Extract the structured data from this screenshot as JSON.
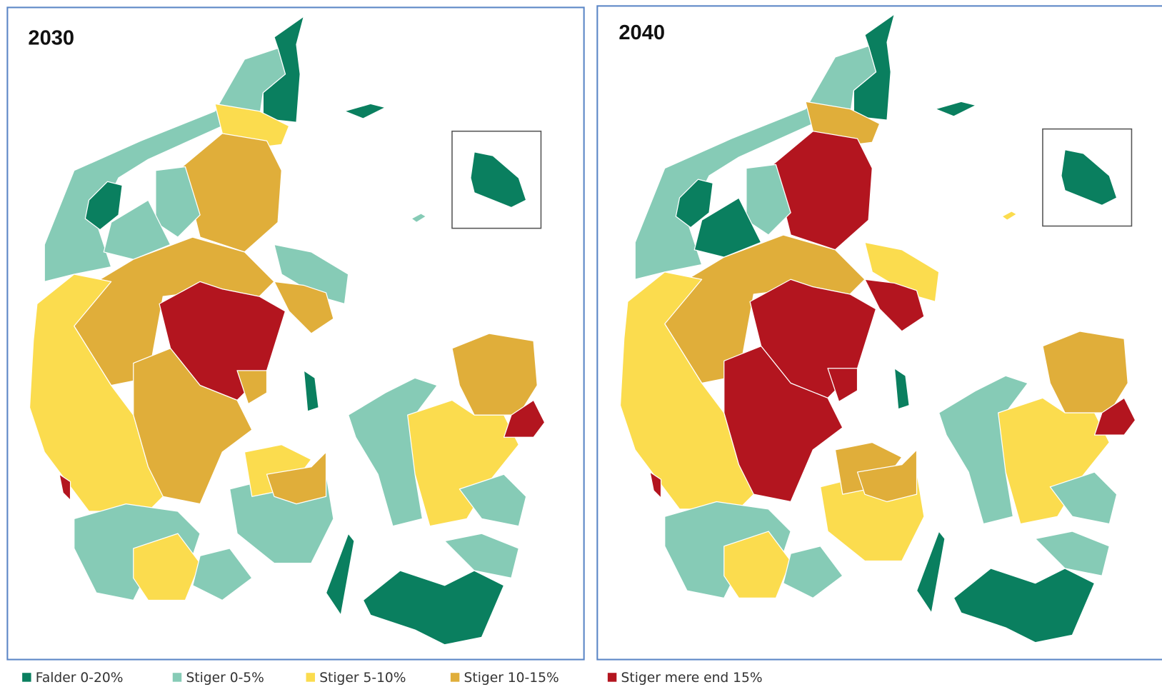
{
  "panels": [
    {
      "title": "2030"
    },
    {
      "title": "2040"
    }
  ],
  "legend": [
    {
      "label": "Falder 0-20%",
      "color": "#0a7f5f"
    },
    {
      "label": "Stiger 0-5%",
      "color": "#86cbb6"
    },
    {
      "label": "Stiger 5-10%",
      "color": "#fbdc4e"
    },
    {
      "label": "Stiger 10-15%",
      "color": "#e0ae3a"
    },
    {
      "label": "Stiger mere end 15%",
      "color": "#b3151f"
    }
  ]
}
